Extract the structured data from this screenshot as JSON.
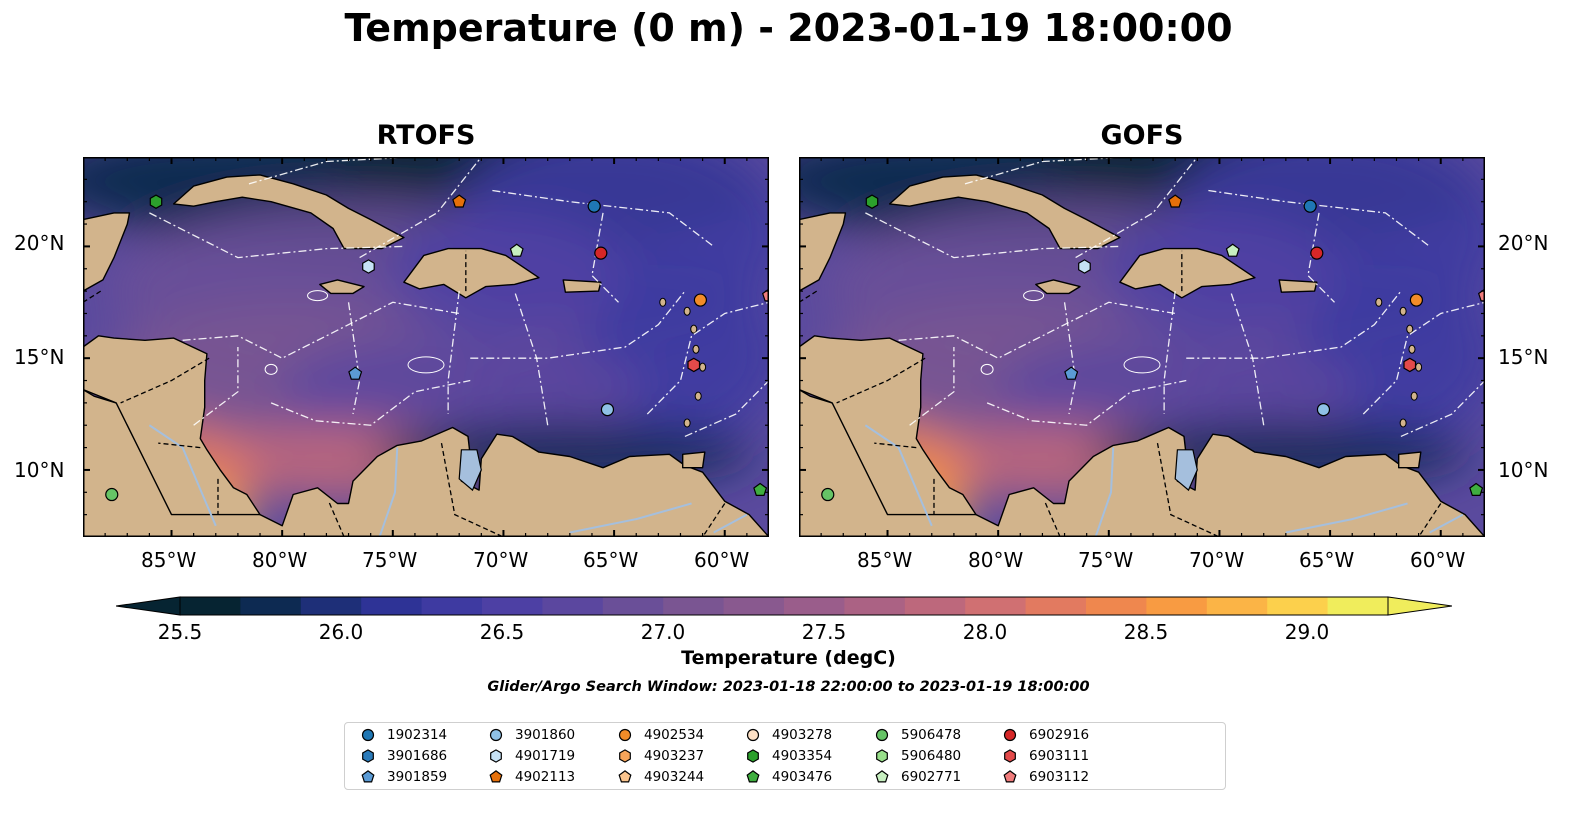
{
  "title": "Temperature (0 m) - 2023-01-19 18:00:00",
  "panels": [
    {
      "name": "RTOFS"
    },
    {
      "name": "GOFS"
    }
  ],
  "lon_ticks": [
    "85°W",
    "80°W",
    "75°W",
    "70°W",
    "65°W",
    "60°W"
  ],
  "lat_ticks": [
    "20°N",
    "15°N",
    "10°N"
  ],
  "map_extent": {
    "lon": [
      -89,
      -58
    ],
    "lat": [
      7,
      24
    ]
  },
  "colorbar": {
    "label": "Temperature (degC)",
    "ticks": [
      "25.5",
      "26.0",
      "26.5",
      "27.0",
      "27.5",
      "28.0",
      "28.5",
      "29.0"
    ],
    "range": [
      25.25,
      29.5
    ],
    "step": 0.25,
    "colors": [
      "#062432",
      "#0d2a52",
      "#1e2f78",
      "#2e3396",
      "#3e3aa1",
      "#4d40a4",
      "#5b479f",
      "#6a4f98",
      "#7a5592",
      "#89598f",
      "#9a5d8b",
      "#ab6284",
      "#bd687c",
      "#d07072",
      "#e27a60",
      "#ef874e",
      "#f89b42",
      "#fbb446",
      "#fcd04c",
      "#f0ed5c"
    ],
    "extend": "both"
  },
  "search_window": "Glider/Argo Search Window: 2023-01-18 22:00:00 to 2023-01-19 18:00:00",
  "colors": {
    "land": "#d2b48c",
    "rivers": "#a5bfdd",
    "ocean_base": "#5a4a9e"
  },
  "legend": [
    {
      "id": "1902314",
      "shape": "circle",
      "color": "#1f77b4"
    },
    {
      "id": "3901686",
      "shape": "hexagon",
      "color": "#2b7bba"
    },
    {
      "id": "3901859",
      "shape": "pentagon",
      "color": "#5b9bd5"
    },
    {
      "id": "3901860",
      "shape": "circle",
      "color": "#8fc1e6"
    },
    {
      "id": "4901719",
      "shape": "hexagon",
      "color": "#c6e2f5"
    },
    {
      "id": "4902113",
      "shape": "pentagon",
      "color": "#e6700a"
    },
    {
      "id": "4902534",
      "shape": "circle",
      "color": "#f28c28"
    },
    {
      "id": "4903237",
      "shape": "hexagon",
      "color": "#f7a55a"
    },
    {
      "id": "4903244",
      "shape": "pentagon",
      "color": "#fbc58e"
    },
    {
      "id": "4903278",
      "shape": "circle",
      "color": "#fde0c5"
    },
    {
      "id": "4903354",
      "shape": "hexagon",
      "color": "#2ca02c"
    },
    {
      "id": "4903476",
      "shape": "pentagon",
      "color": "#3fae3f"
    },
    {
      "id": "5906478",
      "shape": "circle",
      "color": "#66c466"
    },
    {
      "id": "5906480",
      "shape": "hexagon",
      "color": "#98df8a"
    },
    {
      "id": "6902771",
      "shape": "pentagon",
      "color": "#c7efc0"
    },
    {
      "id": "6902916",
      "shape": "circle",
      "color": "#d62728"
    },
    {
      "id": "6903111",
      "shape": "hexagon",
      "color": "#e34a4a"
    },
    {
      "id": "6903112",
      "shape": "pentagon",
      "color": "#f07c7c"
    }
  ],
  "markers": [
    {
      "id": "4903354",
      "lon": -85.7,
      "lat": 22.0
    },
    {
      "id": "4902113",
      "lon": -72.0,
      "lat": 22.0
    },
    {
      "id": "1902314",
      "lon": -65.9,
      "lat": 21.8
    },
    {
      "id": "6902771",
      "lon": -69.4,
      "lat": 19.8
    },
    {
      "id": "6902916",
      "lon": -65.6,
      "lat": 19.7
    },
    {
      "id": "4901719",
      "lon": -76.1,
      "lat": 19.1
    },
    {
      "id": "4902534",
      "lon": -61.1,
      "lat": 17.6
    },
    {
      "id": "6903112",
      "lon": -58.0,
      "lat": 17.8
    },
    {
      "id": "6903111",
      "lon": -61.4,
      "lat": 14.7
    },
    {
      "id": "3901859",
      "lon": -76.7,
      "lat": 14.3
    },
    {
      "id": "3901860",
      "lon": -65.3,
      "lat": 12.7
    },
    {
      "id": "5906478",
      "lon": -87.7,
      "lat": 8.9
    },
    {
      "id": "4903476",
      "lon": -58.4,
      "lat": 9.1
    }
  ]
}
